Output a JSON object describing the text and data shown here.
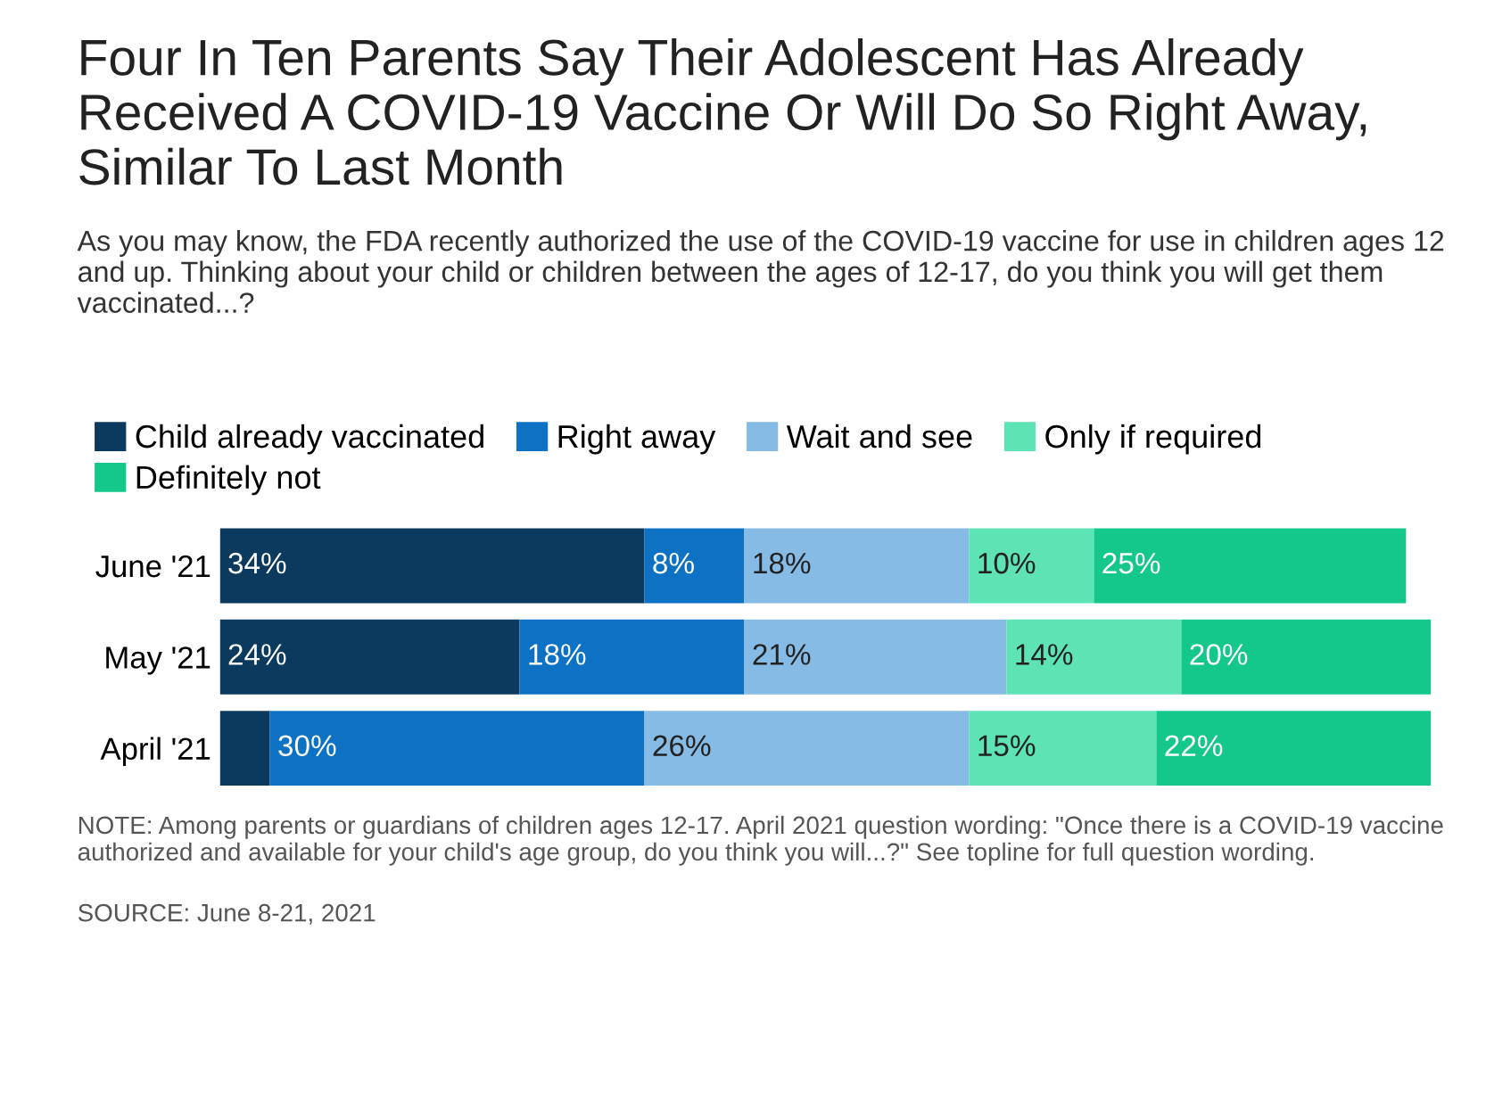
{
  "chart_data": {
    "type": "bar",
    "orientation": "horizontal",
    "stacked": true,
    "title": "Four In Ten Parents Say Their Adolescent Has Already Received A COVID-19 Vaccine Or Will Do So Right Away, Similar To Last Month",
    "subtitle": "As you may know, the FDA recently authorized the use of the COVID-19 vaccine for use in children ages 12 and up. Thinking about your child or children between the ages of 12-17, do you think you will get them vaccinated...?",
    "categories": [
      "June '21",
      "May '21",
      "April '21"
    ],
    "series": [
      {
        "name": "Child already vaccinated",
        "color": "#0b3a5e",
        "values": [
          34,
          24,
          4
        ],
        "value_labels": [
          "34%",
          "24%",
          null
        ]
      },
      {
        "name": "Right away",
        "color": "#0e72c4",
        "values": [
          8,
          18,
          30
        ],
        "value_labels": [
          "8%",
          "18%",
          "30%"
        ]
      },
      {
        "name": "Wait and see",
        "color": "#86bbe6",
        "values": [
          18,
          21,
          26
        ],
        "value_labels": [
          "18%",
          "21%",
          "26%"
        ]
      },
      {
        "name": "Only if required",
        "color": "#5ee3b5",
        "values": [
          10,
          14,
          15
        ],
        "value_labels": [
          "10%",
          "14%",
          "15%"
        ]
      },
      {
        "name": "Definitely not",
        "color": "#14c88c",
        "values": [
          25,
          20,
          22
        ],
        "value_labels": [
          "25%",
          "20%",
          "22%"
        ]
      }
    ],
    "legend": "top left",
    "annotations": [
      "NOTE: Among parents or guardians of children ages 12-17. April 2021 question wording: \"Once there is a COVID-19 vaccine authorized and available for your child's age group, do you think you will...?\" See topline for full question wording.",
      "SOURCE: June 8-21, 2021"
    ]
  }
}
